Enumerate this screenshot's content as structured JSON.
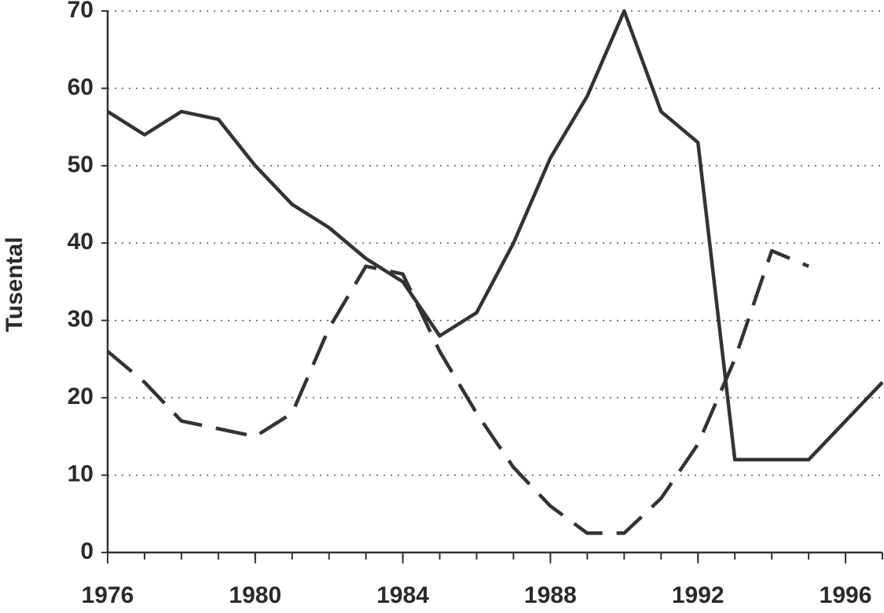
{
  "chart_data": {
    "type": "line",
    "ylabel": "Tusental",
    "x": [
      1976,
      1977,
      1978,
      1979,
      1980,
      1981,
      1982,
      1983,
      1984,
      1985,
      1986,
      1987,
      1988,
      1989,
      1990,
      1991,
      1992,
      1993,
      1994,
      1995,
      1996,
      1997
    ],
    "series": [
      {
        "color": "#333333",
        "dash": "solid",
        "values": [
          57,
          54,
          57,
          56,
          50,
          45,
          42,
          38,
          35,
          28,
          31,
          40,
          51,
          59,
          70,
          57,
          53,
          12,
          12,
          12,
          17,
          22
        ]
      },
      {
        "color": "#333333",
        "dash": "dashed",
        "values": [
          26,
          22,
          17,
          16,
          15,
          18,
          29,
          37,
          36,
          26,
          18,
          11,
          6,
          2.5,
          2.5,
          7,
          14,
          25,
          39,
          37,
          null,
          null
        ]
      }
    ],
    "xlim": [
      1976,
      1997
    ],
    "xticks": [
      1976,
      1980,
      1984,
      1988,
      1992,
      1996
    ],
    "ylim": [
      0,
      70
    ],
    "yticks": [
      0,
      10,
      20,
      30,
      40,
      50,
      60,
      70
    ],
    "grid": true
  }
}
